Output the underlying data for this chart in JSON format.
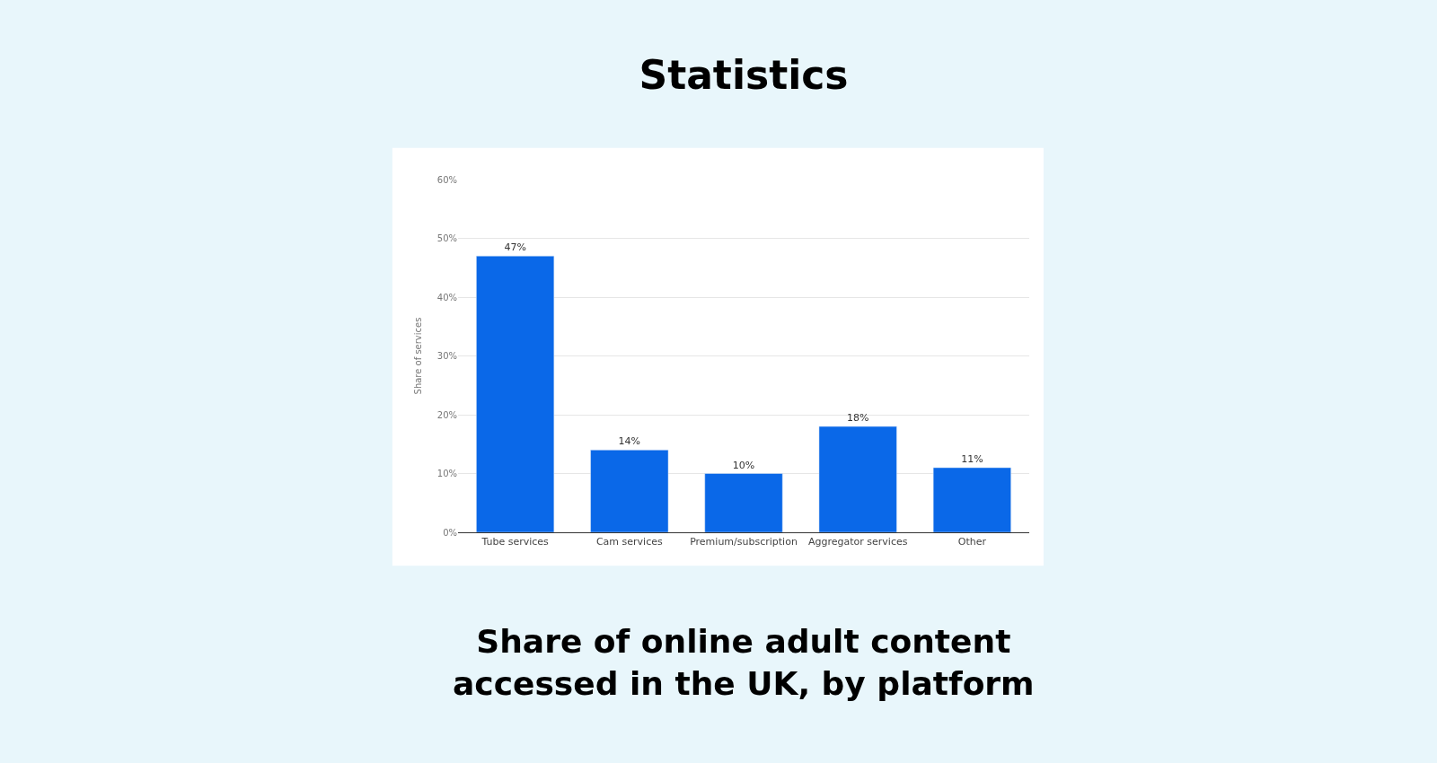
{
  "chart_data": {
    "type": "bar",
    "title": "Statistics",
    "subtitle": "Share of online adult content accessed in the UK, by platform",
    "ylabel": "Share of services",
    "categories": [
      "Tube services",
      "Cam services",
      "Premium/subscription",
      "Aggregator services",
      "Other"
    ],
    "values": [
      47,
      14,
      10,
      18,
      11
    ],
    "value_labels": [
      "47%",
      "14%",
      "10%",
      "18%",
      "11%"
    ],
    "color": "#0a68e8",
    "ylim": [
      0,
      60
    ],
    "yticks": [
      {
        "value": 0,
        "label": "0%"
      },
      {
        "value": 10,
        "label": "10%"
      },
      {
        "value": 20,
        "label": "20%"
      },
      {
        "value": 30,
        "label": "30%"
      },
      {
        "value": 40,
        "label": "40%"
      },
      {
        "value": 50,
        "label": "50%"
      },
      {
        "value": 60,
        "label": "60%"
      }
    ],
    "grid": "y",
    "legend": false
  }
}
